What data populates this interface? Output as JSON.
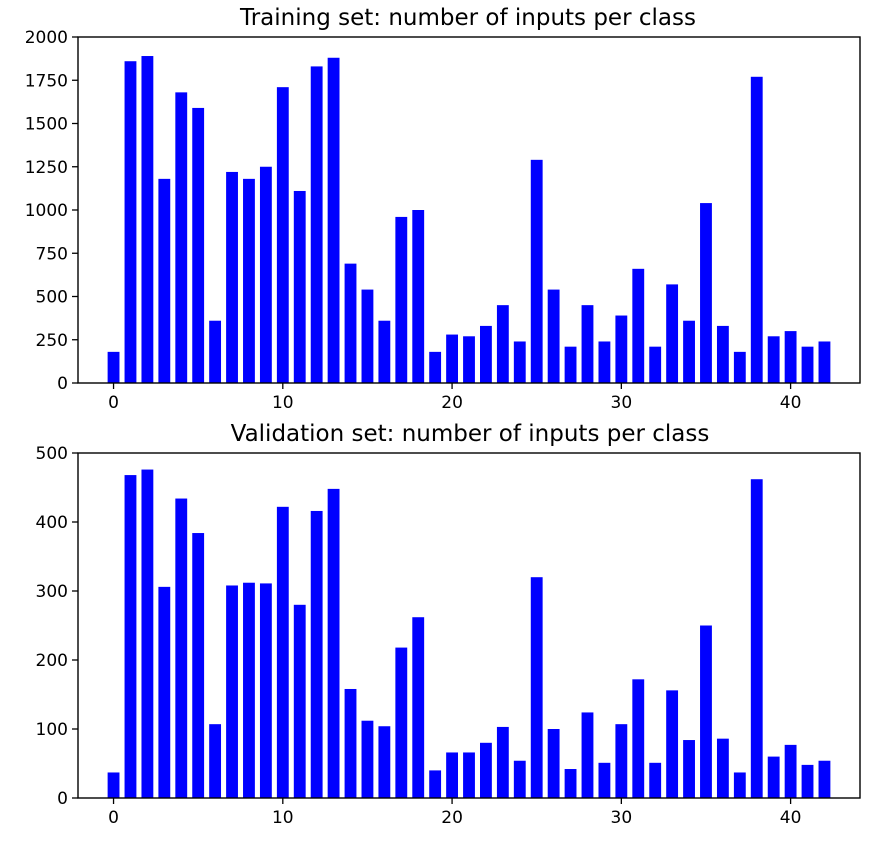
{
  "chart_data": [
    {
      "type": "bar",
      "title": "Training set: number of inputs per class",
      "xlabel": "",
      "ylabel": "",
      "x": [
        0,
        1,
        2,
        3,
        4,
        5,
        6,
        7,
        8,
        9,
        10,
        11,
        12,
        13,
        14,
        15,
        16,
        17,
        18,
        19,
        20,
        21,
        22,
        23,
        24,
        25,
        26,
        27,
        28,
        29,
        30,
        31,
        32,
        33,
        34,
        35,
        36,
        37,
        38,
        39,
        40,
        41,
        42
      ],
      "values": [
        180,
        1860,
        1890,
        1180,
        1680,
        1590,
        360,
        1220,
        1180,
        1250,
        1710,
        1110,
        1830,
        1880,
        690,
        540,
        360,
        960,
        1000,
        180,
        280,
        270,
        330,
        450,
        240,
        1290,
        540,
        210,
        450,
        240,
        390,
        660,
        210,
        570,
        360,
        1040,
        330,
        180,
        1770,
        270,
        300,
        210,
        240
      ],
      "xlim": [
        -2.1,
        44.1
      ],
      "ylim": [
        0,
        2000
      ],
      "xticks": [
        0,
        10,
        20,
        30,
        40
      ],
      "xtick_labels": [
        "0",
        "10",
        "20",
        "30",
        "40"
      ],
      "yticks": [
        0,
        250,
        500,
        750,
        1000,
        1250,
        1500,
        1750,
        2000
      ],
      "ytick_labels": [
        "0",
        "250",
        "500",
        "750",
        "1000",
        "1250",
        "1500",
        "1750",
        "2000"
      ],
      "bar_color": "#0000ff",
      "grid": false
    },
    {
      "type": "bar",
      "title": "Validation set: number of inputs per class",
      "xlabel": "",
      "ylabel": "",
      "x": [
        0,
        1,
        2,
        3,
        4,
        5,
        6,
        7,
        8,
        9,
        10,
        11,
        12,
        13,
        14,
        15,
        16,
        17,
        18,
        19,
        20,
        21,
        22,
        23,
        24,
        25,
        26,
        27,
        28,
        29,
        30,
        31,
        32,
        33,
        34,
        35,
        36,
        37,
        38,
        39,
        40,
        41,
        42
      ],
      "values": [
        37,
        468,
        476,
        306,
        434,
        384,
        107,
        308,
        312,
        311,
        422,
        280,
        416,
        448,
        158,
        112,
        104,
        218,
        262,
        40,
        66,
        66,
        80,
        103,
        54,
        320,
        100,
        42,
        124,
        51,
        107,
        172,
        51,
        156,
        84,
        250,
        86,
        37,
        462,
        60,
        77,
        48,
        54
      ],
      "xlim": [
        -2.1,
        44.1
      ],
      "ylim": [
        0,
        500
      ],
      "xticks": [
        0,
        10,
        20,
        30,
        40
      ],
      "xtick_labels": [
        "0",
        "10",
        "20",
        "30",
        "40"
      ],
      "yticks": [
        0,
        100,
        200,
        300,
        400,
        500
      ],
      "ytick_labels": [
        "0",
        "100",
        "200",
        "300",
        "400",
        "500"
      ],
      "bar_color": "#0000ff",
      "grid": false
    }
  ]
}
